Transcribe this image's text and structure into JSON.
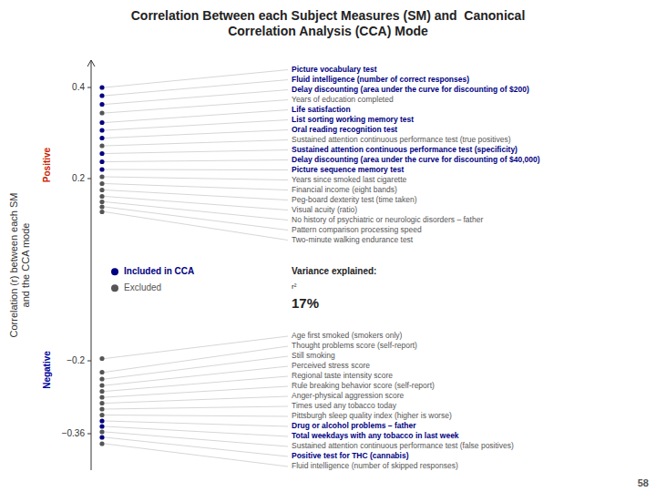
{
  "chart_data": {
    "type": "dot",
    "title": "Correlation Between each Subject Measures (SM) and  Canonical\nCorrelation Analysis (CCA) Mode",
    "y_label": "Correlation (r) between each SM\nand the CCA mode",
    "categories": [
      "Picture vocabulary test",
      "Fluid intelligence (number of correct responses)",
      "Delay discounting (area under the curve for discounting of $200)",
      "Years of education completed",
      "Life satisfaction",
      "List sorting working memory test",
      "Oral reading recognition test",
      "Sustained attention continuous performance test (true positives)",
      "Sustained attention continuous performance test (specificity)",
      "Delay discounting (area under the curve for discounting of $40,000)",
      "Picture sequence memory test",
      "Years since smoked last cigarette",
      "Financial income (eight bands)",
      "Peg-board dexterity test (time taken)",
      "Visual acuity (ratio)",
      "No history of psychiatric or neurologic disorders – father",
      "Pattern comparison processing speed",
      "Two-minute walking endurance test",
      "Age first smoked (smokers only)",
      "Thought problems score (self-report)",
      "Still smoking",
      "Perceived stress score",
      "Regional taste intensity score",
      "Rule breaking behavior score (self-report)",
      "Anger-physical aggression score",
      "Times used any tobacco today",
      "Pittsburgh sleep quality index (higher is worse)",
      "Drug or alcohol problems – father",
      "Total weekdays with any tobacco in last week",
      "Sustained attention continuous performance test (false positives)",
      "Positive test for THC (cannabis)",
      "Fluid intelligence (number of skipped responses)"
    ],
    "series": [
      {
        "name": "Included in CCA",
        "color": "#000080",
        "values": [
          0.4,
          0.382,
          0.363,
          null,
          0.323,
          0.306,
          0.289,
          null,
          0.255,
          0.237,
          0.22,
          null,
          null,
          null,
          null,
          null,
          null,
          null,
          null,
          null,
          null,
          null,
          null,
          null,
          null,
          null,
          null,
          -0.332,
          -0.344,
          null,
          -0.368,
          null
        ]
      },
      {
        "name": "Excluded",
        "color": "#555555",
        "values": [
          null,
          null,
          null,
          0.344,
          null,
          null,
          null,
          0.272,
          null,
          null,
          null,
          0.204,
          0.189,
          0.175,
          0.161,
          0.149,
          0.138,
          0.127,
          -0.195,
          -0.225,
          -0.24,
          -0.254,
          -0.267,
          -0.28,
          -0.293,
          -0.306,
          -0.319,
          null,
          null,
          -0.356,
          null,
          -0.382
        ]
      }
    ],
    "ylim": [
      -0.44,
      0.46
    ],
    "yticks": [
      0.4,
      0.2,
      {
        "value": -0.2,
        "label": "−0.2"
      },
      {
        "value": -0.36,
        "label": "−0.36"
      }
    ],
    "legend": "left",
    "annotations": [
      {
        "text": "Positive",
        "color": "#cc2200"
      },
      {
        "text": "Negative",
        "color": "#000099"
      },
      {
        "text": "Variance explained:"
      },
      {
        "text": "r²"
      },
      {
        "text": "17%"
      },
      {
        "text": "58"
      }
    ]
  }
}
